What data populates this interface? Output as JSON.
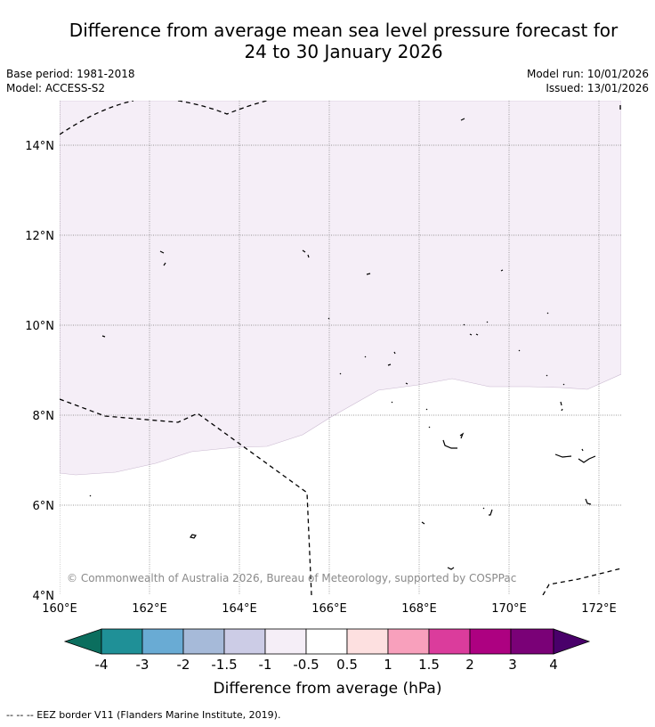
{
  "title": {
    "line1": "Difference from average mean sea level pressure forecast for",
    "line2": "24 to 30 January 2026"
  },
  "meta": {
    "base_period": "Base period: 1981-2018",
    "model": "Model: ACCESS-S2",
    "model_run": "Model run: 10/01/2026",
    "issued": "Issued: 13/01/2026"
  },
  "map": {
    "lat_labels": [
      "14°N",
      "12°N",
      "10°N",
      "8°N",
      "6°N",
      "4°N"
    ],
    "lon_labels": [
      "160°E",
      "162°E",
      "164°E",
      "166°E",
      "168°E",
      "170°E",
      "172°E"
    ],
    "anomaly_region_color": "#f5eef7",
    "copyright": "© Commonwealth of Australia 2026, Bureau of Meteorology, supported by COSPPac"
  },
  "colorbar": {
    "title": "Difference from average (hPa)",
    "labels": [
      "-4",
      "-3",
      "-2",
      "-1.5",
      "-1",
      "-0.5",
      "0.5",
      "1",
      "1.5",
      "2",
      "3",
      "4"
    ],
    "colors": {
      "under": "#0b6e5e",
      "bins": [
        "#1f9097",
        "#69abd4",
        "#a6bad9",
        "#cccce6",
        "#f5eef7",
        "#ffffff",
        "#fde0e0",
        "#f8a0bc",
        "#db3c9c",
        "#ad0181",
        "#7a0177"
      ],
      "over": "#49006a"
    }
  },
  "footer": {
    "legend": "--  --  -- EEZ border V11 (Flanders Marine Institute, 2019)."
  }
}
